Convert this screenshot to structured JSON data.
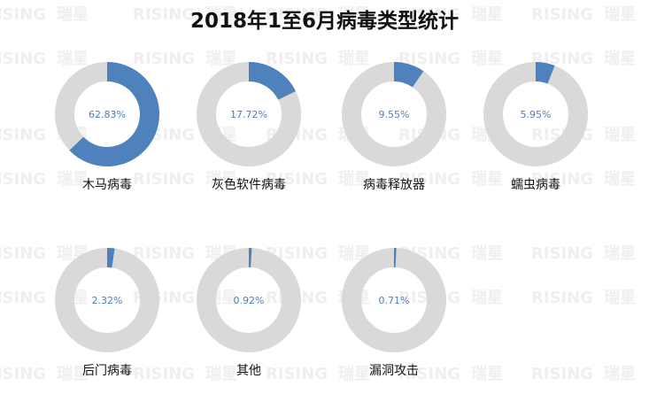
{
  "title": "2018年1至6月病毒类型统计",
  "watermark": {
    "latin": "RISING",
    "cjk": "瑞星"
  },
  "colors": {
    "filled": "#4f81bd",
    "ring": "#d9d9d9",
    "pct_text": "#4e7ec0"
  },
  "chart_data": {
    "type": "pie",
    "variant": "donut-grid",
    "title": "2018年1至6月病毒类型统计",
    "categories": [
      "木马病毒",
      "灰色软件病毒",
      "病毒释放器",
      "蠕虫病毒",
      "后门病毒",
      "其他",
      "漏洞攻击"
    ],
    "values": [
      62.83,
      17.72,
      9.55,
      5.95,
      2.32,
      0.92,
      0.71
    ],
    "value_labels": [
      "62.83%",
      "17.72%",
      "9.55%",
      "5.95%",
      "2.32%",
      "0.92%",
      "0.71%"
    ],
    "unit": "%"
  }
}
